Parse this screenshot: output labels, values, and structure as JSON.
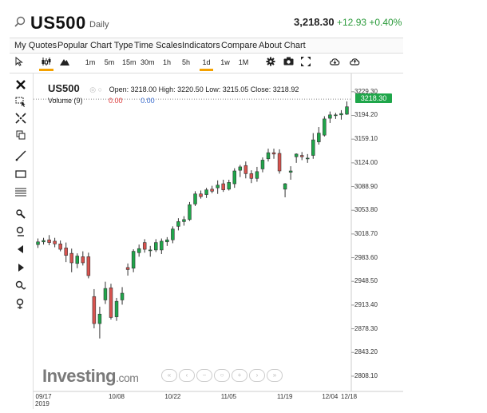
{
  "header": {
    "symbol": "US500",
    "timeframe": "Daily",
    "price": "3,218.30",
    "change": "+12.93 +0.40%"
  },
  "menu": [
    "My Quotes",
    "Popular",
    "Chart Type",
    "Time Scales",
    "Indicators",
    "Compare",
    "About Chart"
  ],
  "toolbar": {
    "intervals": [
      "1m",
      "5m",
      "15m",
      "30m",
      "1h",
      "5h",
      "1d",
      "1w",
      "1M"
    ],
    "selected_interval": "1d"
  },
  "legend": {
    "symbol": "US500",
    "open": "Open: 3218.00",
    "high": "High: 3220.50",
    "low": "Low: 3215.05",
    "close": "Close: 3218.92",
    "volume_label": "Volume (9)",
    "volume_val1": "0.00",
    "volume_val2": "0.00"
  },
  "current_price_tag": "3218.30",
  "logo": {
    "main": "Investing",
    "suffix": ".com"
  },
  "colors": {
    "up": "#1fa64a",
    "down": "#d9534f",
    "accent": "#f4a100"
  },
  "chart_data": {
    "type": "candlestick",
    "y_ticks": [
      "3229.30",
      "3194.20",
      "3159.10",
      "3124.00",
      "3088.90",
      "3053.80",
      "3018.70",
      "2983.60",
      "2948.50",
      "2913.40",
      "2878.30",
      "2843.20",
      "2808.10"
    ],
    "x_ticks": [
      "09/17",
      "10/08",
      "10/22",
      "11/05",
      "11/19",
      "12/04",
      "12/18"
    ],
    "x_sub": "2019",
    "ylim": [
      2795,
      3235
    ],
    "candles": [
      [
        3003,
        3012,
        2998,
        3007
      ],
      [
        3007,
        3013,
        3003,
        3009
      ],
      [
        3010,
        3017,
        3002,
        3006
      ],
      [
        3008,
        3013,
        2999,
        3004
      ],
      [
        3004,
        3009,
        2993,
        2996
      ],
      [
        2998,
        3006,
        2977,
        2987
      ],
      [
        2990,
        2997,
        2962,
        2976
      ],
      [
        2975,
        2990,
        2968,
        2986
      ],
      [
        2985,
        2993,
        2972,
        2976
      ],
      [
        2985,
        2991,
        2953,
        2957
      ],
      [
        2926,
        2937,
        2879,
        2886
      ],
      [
        2886,
        2911,
        2864,
        2900
      ],
      [
        2921,
        2948,
        2915,
        2938
      ],
      [
        2939,
        2945,
        2892,
        2895
      ],
      [
        2896,
        2924,
        2890,
        2919
      ],
      [
        2921,
        2940,
        2914,
        2931
      ],
      [
        2969,
        2975,
        2957,
        2966
      ],
      [
        2968,
        2996,
        2962,
        2993
      ],
      [
        2991,
        3003,
        2985,
        2997
      ],
      [
        3006,
        3011,
        2991,
        2996
      ],
      [
        2995,
        3001,
        2985,
        2995
      ],
      [
        2995,
        3011,
        2992,
        3006
      ],
      [
        2995,
        3012,
        2989,
        3008
      ],
      [
        3007,
        3014,
        3001,
        3010
      ],
      [
        3010,
        3030,
        3005,
        3026
      ],
      [
        3030,
        3042,
        3024,
        3037
      ],
      [
        3037,
        3045,
        3031,
        3040
      ],
      [
        3040,
        3066,
        3038,
        3062
      ],
      [
        3063,
        3082,
        3060,
        3078
      ],
      [
        3078,
        3083,
        3071,
        3074
      ],
      [
        3077,
        3087,
        3072,
        3084
      ],
      [
        3085,
        3090,
        3079,
        3082
      ],
      [
        3087,
        3098,
        3078,
        3091
      ],
      [
        3093,
        3099,
        3081,
        3084
      ],
      [
        3085,
        3099,
        3083,
        3095
      ],
      [
        3093,
        3116,
        3087,
        3112
      ],
      [
        3113,
        3121,
        3103,
        3118
      ],
      [
        3120,
        3126,
        3101,
        3108
      ],
      [
        3108,
        3113,
        3094,
        3101
      ],
      [
        3101,
        3118,
        3096,
        3111
      ],
      [
        3115,
        3132,
        3110,
        3128
      ],
      [
        3130,
        3145,
        3126,
        3139
      ],
      [
        3139,
        3145,
        3130,
        3137
      ],
      [
        3138,
        3144,
        3108,
        3112
      ],
      [
        3085,
        3094,
        3073,
        3093
      ],
      [
        3110,
        3119,
        3099,
        3112
      ],
      [
        3133,
        3138,
        3124,
        3137
      ],
      [
        3135,
        3140,
        3128,
        3133
      ],
      [
        3131,
        3137,
        3124,
        3131
      ],
      [
        3135,
        3168,
        3130,
        3158
      ],
      [
        3155,
        3177,
        3151,
        3168
      ],
      [
        3165,
        3193,
        3163,
        3189
      ],
      [
        3190,
        3200,
        3183,
        3195
      ],
      [
        3194,
        3198,
        3189,
        3195
      ],
      [
        3195,
        3202,
        3188,
        3197
      ],
      [
        3196,
        3215,
        3195,
        3207
      ]
    ]
  }
}
